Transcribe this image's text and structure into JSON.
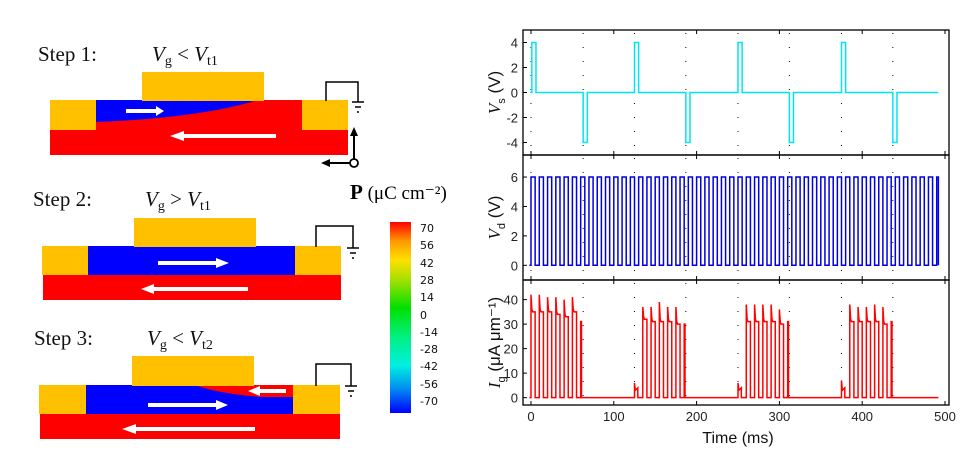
{
  "steps": [
    {
      "label": "Step 1:",
      "var": "V",
      "var_sub": "g",
      "op": "<",
      "thr": "V",
      "thr_sub": "t1"
    },
    {
      "label": "Step 2:",
      "var": "V",
      "var_sub": "g",
      "op": ">",
      "thr": "V",
      "thr_sub": "t1"
    },
    {
      "label": "Step 3:",
      "var": "V",
      "var_sub": "g",
      "op": "<",
      "thr": "V",
      "thr_sub": "t2"
    }
  ],
  "polarization": {
    "symbol": "P",
    "unit": "(μC cm⁻²)"
  },
  "colorbar": {
    "ticks": [
      "70",
      "56",
      "42",
      "28",
      "14",
      "0",
      "-14",
      "-28",
      "-42",
      "-56",
      "-70"
    ],
    "range": [
      -70,
      70
    ]
  },
  "colors": {
    "electrode": "#FFC000",
    "pos_domain": "#FF0000",
    "neg_domain": "#0000FF",
    "vs_trace": "#00E5EE",
    "vd_trace": "#0000E0",
    "ig_trace": "#FF0000"
  },
  "chart_data": {
    "type": "line",
    "xlabel": "Time (ms)",
    "xlim": [
      0,
      500
    ],
    "xticks": [
      "0",
      "100",
      "200",
      "300",
      "400",
      "500"
    ],
    "panels": [
      {
        "name": "Vs",
        "ylabel": "V",
        "ylabel_sub": "s",
        "ylabel_unit": " (V)",
        "ylim": [
          -5,
          5
        ],
        "yticks": [
          "4",
          "2",
          "0",
          "-2",
          "-4"
        ],
        "pulses": [
          {
            "start": 1,
            "end": 6,
            "value": 4
          },
          {
            "start": 63,
            "end": 68,
            "value": -4
          },
          {
            "start": 125,
            "end": 130,
            "value": 4
          },
          {
            "start": 187,
            "end": 192,
            "value": -4
          },
          {
            "start": 250,
            "end": 255,
            "value": 4
          },
          {
            "start": 312,
            "end": 317,
            "value": -4
          },
          {
            "start": 375,
            "end": 380,
            "value": 4
          },
          {
            "start": 437,
            "end": 442,
            "value": -4
          }
        ],
        "baseline": 0,
        "series_end": 492
      },
      {
        "name": "Vd",
        "ylabel": "V",
        "ylabel_sub": "d",
        "ylabel_unit": " (V)",
        "ylim": [
          -1,
          7.5
        ],
        "yticks": [
          "6",
          "4",
          "2",
          "0"
        ],
        "period_ms": 10,
        "high": 6,
        "low": 0,
        "start": 0,
        "series_end": 492
      },
      {
        "name": "Ig",
        "ylabel": "I",
        "ylabel_sub": "g",
        "ylabel_unit": " (μA μm⁻¹)",
        "ylim": [
          -3,
          48
        ],
        "yticks": [
          "40",
          "30",
          "20",
          "10",
          "0"
        ],
        "bursts": [
          {
            "start": 0,
            "peaks": [
              42,
              42,
              41,
              41,
              40,
              41
            ],
            "plateaus": [
              35,
              35,
              35,
              34,
              33,
              35
            ],
            "tail": 31
          },
          {
            "start": 125,
            "pre_bump": 6,
            "peaks": [
              37,
              37,
              39,
              37,
              37
            ],
            "plateaus": [
              32,
              31,
              31,
              31,
              30
            ],
            "tail": 30
          },
          {
            "start": 250,
            "pre_bump": 6,
            "peaks": [
              38,
              38,
              38,
              38,
              36
            ],
            "plateaus": [
              31,
              31,
              31,
              31,
              30
            ],
            "tail": 31
          },
          {
            "start": 375,
            "pre_bump": 7,
            "peaks": [
              38,
              37,
              37,
              38,
              37
            ],
            "plateaus": [
              31,
              31,
              31,
              31,
              30
            ],
            "tail": 31
          }
        ],
        "series_end": 492
      }
    ],
    "guide_lines_ms": [
      0,
      63,
      125,
      187,
      250,
      312,
      375,
      437
    ]
  }
}
